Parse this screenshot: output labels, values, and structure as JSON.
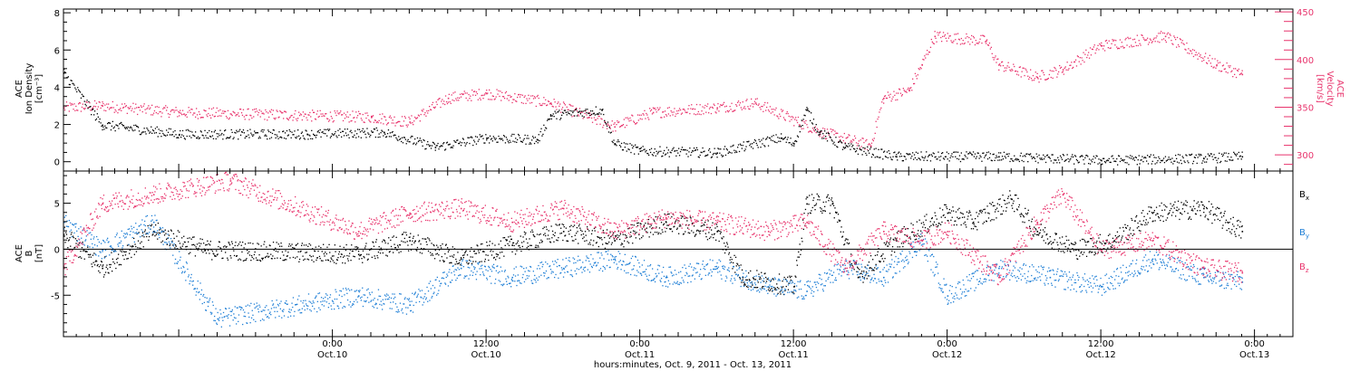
{
  "chart_data": {
    "time_range": [
      "2011-10-09 03:00",
      "2011-10-13 03:00"
    ],
    "xlabel": "hours:minutes, Oct.  9, 2011 - Oct. 13, 2011",
    "x_ticks": [
      {
        "t": "2011-10-10 00:00",
        "time": "0:00",
        "date": "Oct.10"
      },
      {
        "t": "2011-10-10 12:00",
        "time": "12:00",
        "date": "Oct.10"
      },
      {
        "t": "2011-10-11 00:00",
        "time": "0:00",
        "date": "Oct.11"
      },
      {
        "t": "2011-10-11 12:00",
        "time": "12:00",
        "date": "Oct.11"
      },
      {
        "t": "2011-10-12 00:00",
        "time": "0:00",
        "date": "Oct.12"
      },
      {
        "t": "2011-10-12 12:00",
        "time": "12:00",
        "date": "Oct.12"
      },
      {
        "t": "2011-10-13 00:00",
        "time": "0:00",
        "date": "Oct.13"
      }
    ],
    "panels": [
      {
        "type": "scatter",
        "left_axis": {
          "label_lines": [
            "ACE",
            "Ion Density",
            "[cm⁻³]"
          ],
          "ylim": [
            -0.5,
            8.2
          ],
          "ticks": [
            0,
            2,
            4,
            6,
            8
          ],
          "color": "#000000"
        },
        "right_axis": {
          "label_lines": [
            "ACE",
            "Velocity",
            "[km/s]"
          ],
          "ylim": [
            283,
            453
          ],
          "ticks": [
            300,
            350,
            400,
            450
          ],
          "color": "#e8336c"
        },
        "series": [
          {
            "axis": "left",
            "color": "#000000",
            "points": [
              [
                "2011-10-09 03:00",
                4.8
              ],
              [
                "2011-10-09 06:00",
                2.0
              ],
              [
                "2011-10-09 12:00",
                1.5
              ],
              [
                "2011-10-09 22:00",
                1.5
              ],
              [
                "2011-10-10 04:00",
                1.6
              ],
              [
                "2011-10-10 08:00",
                0.8
              ],
              [
                "2011-10-10 12:00",
                1.3
              ],
              [
                "2011-10-10 16:00",
                1.2
              ],
              [
                "2011-10-10 17:00",
                2.5
              ],
              [
                "2011-10-10 21:00",
                2.8
              ],
              [
                "2011-10-10 22:00",
                1.0
              ],
              [
                "2011-10-11 00:00",
                0.6
              ],
              [
                "2011-10-11 06:00",
                0.5
              ],
              [
                "2011-10-11 11:00",
                1.3
              ],
              [
                "2011-10-11 12:00",
                1.0
              ],
              [
                "2011-10-11 13:00",
                2.8
              ],
              [
                "2011-10-11 14:00",
                1.6
              ],
              [
                "2011-10-11 16:00",
                0.8
              ],
              [
                "2011-10-11 20:00",
                0.3
              ],
              [
                "2011-10-12 04:00",
                0.3
              ],
              [
                "2011-10-12 12:00",
                0.1
              ],
              [
                "2011-10-12 20:00",
                0.2
              ],
              [
                "2011-10-12 23:00",
                0.3
              ]
            ]
          },
          {
            "axis": "right",
            "color": "#e8336c",
            "points": [
              [
                "2011-10-09 03:00",
                350
              ],
              [
                "2011-10-09 06:00",
                352
              ],
              [
                "2011-10-09 12:00",
                345
              ],
              [
                "2011-10-10 03:00",
                340
              ],
              [
                "2011-10-10 06:00",
                335
              ],
              [
                "2011-10-10 09:00",
                360
              ],
              [
                "2011-10-10 12:00",
                365
              ],
              [
                "2011-10-10 17:00",
                355
              ],
              [
                "2011-10-10 20:00",
                340
              ],
              [
                "2011-10-10 22:00",
                330
              ],
              [
                "2011-10-11 01:00",
                345
              ],
              [
                "2011-10-11 06:00",
                350
              ],
              [
                "2011-10-11 09:00",
                355
              ],
              [
                "2011-10-11 14:00",
                325
              ],
              [
                "2011-10-11 18:00",
                310
              ],
              [
                "2011-10-11 19:00",
                360
              ],
              [
                "2011-10-11 21:00",
                368
              ],
              [
                "2011-10-11 22:00",
                395
              ],
              [
                "2011-10-11 23:00",
                425
              ],
              [
                "2011-10-12 03:00",
                420
              ],
              [
                "2011-10-12 04:00",
                395
              ],
              [
                "2011-10-12 07:00",
                382
              ],
              [
                "2011-10-12 09:00",
                390
              ],
              [
                "2011-10-12 12:00",
                415
              ],
              [
                "2011-10-12 17:00",
                425
              ],
              [
                "2011-10-12 21:00",
                395
              ],
              [
                "2011-10-12 23:00",
                385
              ]
            ]
          }
        ]
      },
      {
        "type": "scatter",
        "left_axis": {
          "label_lines": [
            "ACE",
            "B",
            "[nT]"
          ],
          "ylim": [
            -9.5,
            8.5
          ],
          "ticks": [
            -5,
            0,
            5
          ],
          "color": "#000000"
        },
        "zero_line": true,
        "series": [
          {
            "name": "Bx",
            "color": "#000000",
            "points": [
              [
                "2011-10-09 03:00",
                1.5
              ],
              [
                "2011-10-09 06:00",
                -2.0
              ],
              [
                "2011-10-09 10:00",
                2.0
              ],
              [
                "2011-10-09 14:00",
                0.0
              ],
              [
                "2011-10-10 02:00",
                -0.5
              ],
              [
                "2011-10-10 06:00",
                1.0
              ],
              [
                "2011-10-10 10:00",
                -1.0
              ],
              [
                "2011-10-10 14:00",
                0.5
              ],
              [
                "2011-10-10 18:00",
                2.0
              ],
              [
                "2011-10-10 22:00",
                1.0
              ],
              [
                "2011-10-11 02:00",
                3.0
              ],
              [
                "2011-10-11 06:00",
                2.0
              ],
              [
                "2011-10-11 08:00",
                -3.0
              ],
              [
                "2011-10-11 12:00",
                -4.0
              ],
              [
                "2011-10-11 13:00",
                5.0
              ],
              [
                "2011-10-11 15:00",
                5.0
              ],
              [
                "2011-10-11 17:00",
                -3.0
              ],
              [
                "2011-10-11 20:00",
                1.0
              ],
              [
                "2011-10-12 00:00",
                4.0
              ],
              [
                "2011-10-12 02:00",
                3.0
              ],
              [
                "2011-10-12 05:00",
                5.5
              ],
              [
                "2011-10-12 07:00",
                2.0
              ],
              [
                "2011-10-12 10:00",
                0.0
              ],
              [
                "2011-10-12 13:00",
                1.0
              ],
              [
                "2011-10-12 16:00",
                4.0
              ],
              [
                "2011-10-12 20:00",
                4.5
              ],
              [
                "2011-10-12 23:00",
                2.0
              ]
            ]
          },
          {
            "name": "By",
            "color": "#1f7fd6",
            "points": [
              [
                "2011-10-09 03:00",
                3.0
              ],
              [
                "2011-10-09 06:00",
                0.0
              ],
              [
                "2011-10-09 10:00",
                3.0
              ],
              [
                "2011-10-09 15:00",
                -7.5
              ],
              [
                "2011-10-10 02:00",
                -5.0
              ],
              [
                "2011-10-10 06:00",
                -6.0
              ],
              [
                "2011-10-10 10:00",
                -2.0
              ],
              [
                "2011-10-10 14:00",
                -3.0
              ],
              [
                "2011-10-10 18:00",
                -2.0
              ],
              [
                "2011-10-10 22:00",
                -1.0
              ],
              [
                "2011-10-11 02:00",
                -3.0
              ],
              [
                "2011-10-11 06:00",
                -2.0
              ],
              [
                "2011-10-11 10:00",
                -4.0
              ],
              [
                "2011-10-11 13:00",
                -4.5
              ],
              [
                "2011-10-11 16:00",
                -2.0
              ],
              [
                "2011-10-11 19:00",
                -3.0
              ],
              [
                "2011-10-11 22:00",
                1.0
              ],
              [
                "2011-10-12 00:00",
                -5.0
              ],
              [
                "2011-10-12 04:00",
                -2.0
              ],
              [
                "2011-10-12 08:00",
                -3.0
              ],
              [
                "2011-10-12 12:00",
                -4.0
              ],
              [
                "2011-10-12 16:00",
                -1.0
              ],
              [
                "2011-10-12 20:00",
                -3.0
              ],
              [
                "2011-10-12 23:00",
                -3.5
              ]
            ]
          },
          {
            "name": "Bz",
            "color": "#e8336c",
            "points": [
              [
                "2011-10-09 03:00",
                -2.0
              ],
              [
                "2011-10-09 06:00",
                5.0
              ],
              [
                "2011-10-09 10:00",
                6.0
              ],
              [
                "2011-10-09 16:00",
                7.5
              ],
              [
                "2011-10-10 02:00",
                2.0
              ],
              [
                "2011-10-10 06:00",
                4.0
              ],
              [
                "2011-10-10 10:00",
                4.5
              ],
              [
                "2011-10-10 14:00",
                3.0
              ],
              [
                "2011-10-10 18:00",
                4.5
              ],
              [
                "2011-10-10 22:00",
                2.0
              ],
              [
                "2011-10-11 02:00",
                3.5
              ],
              [
                "2011-10-11 06:00",
                3.0
              ],
              [
                "2011-10-11 10:00",
                2.0
              ],
              [
                "2011-10-11 13:00",
                3.0
              ],
              [
                "2011-10-11 16:00",
                -2.0
              ],
              [
                "2011-10-11 19:00",
                2.0
              ],
              [
                "2011-10-11 22:00",
                1.0
              ],
              [
                "2011-10-12 00:00",
                2.0
              ],
              [
                "2011-10-12 04:00",
                -3.0
              ],
              [
                "2011-10-12 07:00",
                3.0
              ],
              [
                "2011-10-12 09:00",
                6.0
              ],
              [
                "2011-10-12 12:00",
                0.0
              ],
              [
                "2011-10-12 16:00",
                1.0
              ],
              [
                "2011-10-12 20:00",
                -2.0
              ],
              [
                "2011-10-12 23:00",
                -2.5
              ]
            ]
          }
        ]
      }
    ]
  }
}
